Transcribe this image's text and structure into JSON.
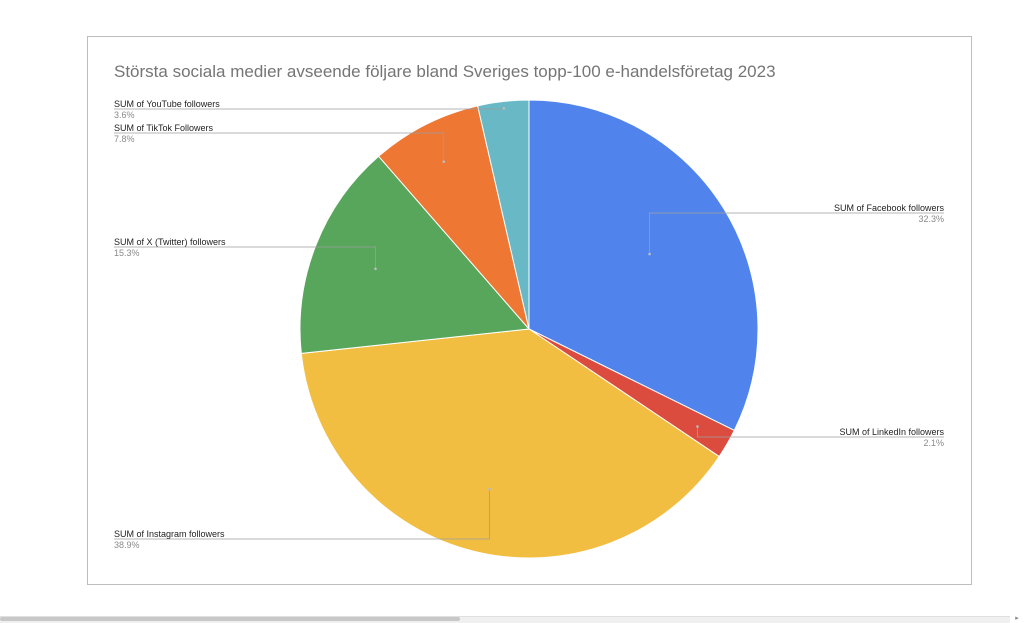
{
  "chart_data": {
    "type": "pie",
    "title": "Största sociala medier avseende följare bland Sveriges topp-100 e-handelsföretag 2023",
    "slices": [
      {
        "label": "SUM of Facebook followers",
        "value": 32.3,
        "percent_label": "32.3%",
        "color": "#5084ec"
      },
      {
        "label": "SUM of LinkedIn followers",
        "value": 2.1,
        "percent_label": "2.1%",
        "color": "#dc4c3e"
      },
      {
        "label": "SUM of Instagram followers",
        "value": 38.9,
        "percent_label": "38.9%",
        "color": "#f2be42"
      },
      {
        "label": "SUM of X (Twitter) followers",
        "value": 15.3,
        "percent_label": "15.3%",
        "color": "#58a65c"
      },
      {
        "label": "SUM of TikTok Followers",
        "value": 7.8,
        "percent_label": "7.8%",
        "color": "#ee7734"
      },
      {
        "label": "SUM of YouTube followers",
        "value": 3.6,
        "percent_label": "3.6%",
        "color": "#68b8c6"
      }
    ],
    "start_angle_deg": 0,
    "direction": "clockwise",
    "legend": "labels-with-leader-lines"
  }
}
